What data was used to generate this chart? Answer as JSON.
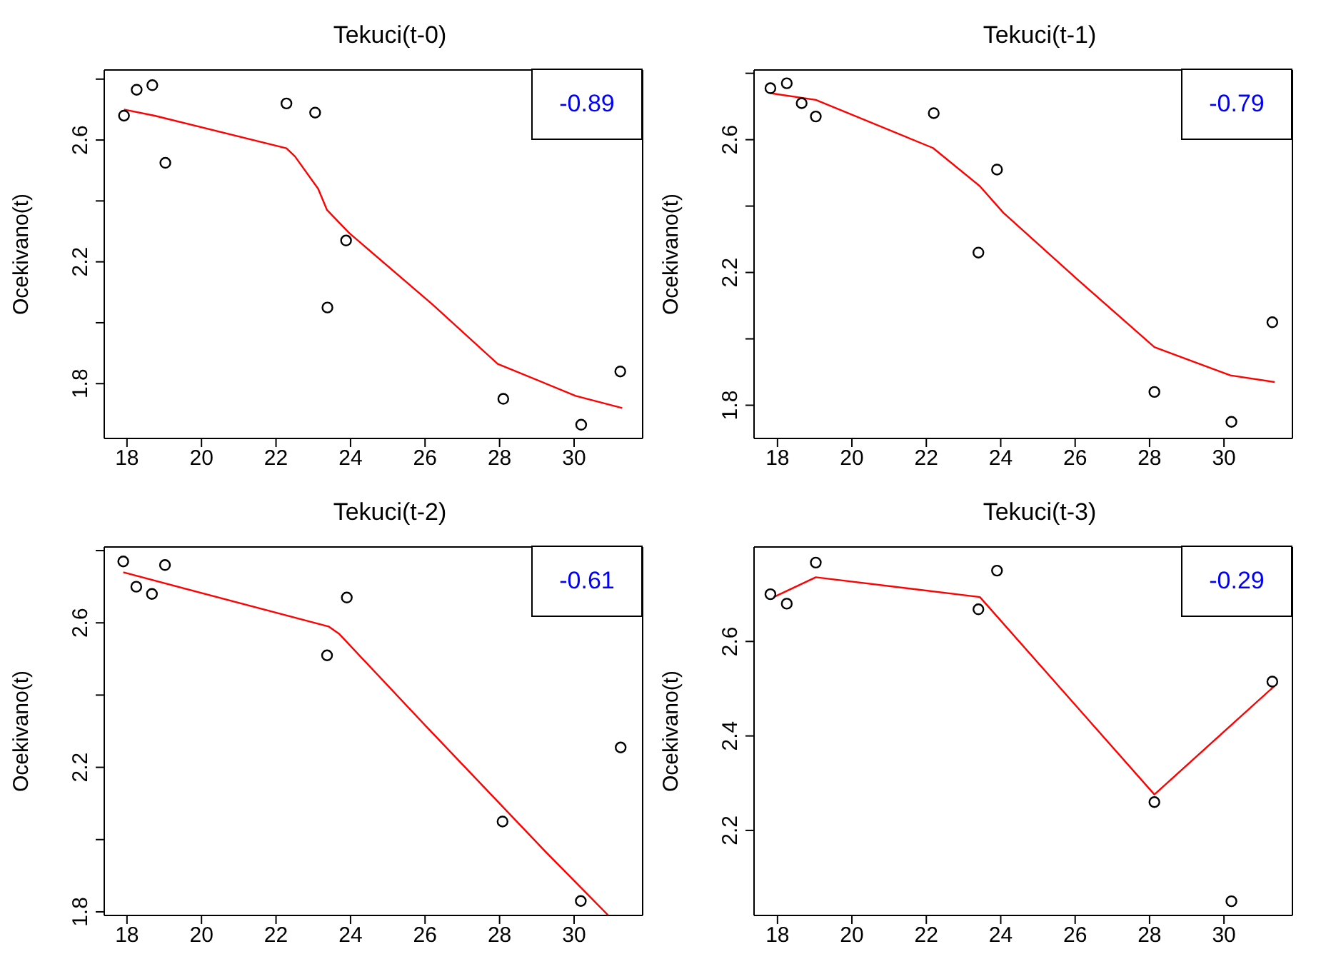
{
  "chart_data": [
    {
      "type": "scatter",
      "title": "Tekuci(t-0)",
      "ylabel": "Ocekivano(t)",
      "annotations": [
        "-0.89"
      ],
      "marker": "circle",
      "grid": false,
      "legend": false,
      "xlim": [
        17.39,
        31.84
      ],
      "xticks": [
        18,
        20,
        22,
        24,
        26,
        28,
        30
      ],
      "ylim": [
        1.62,
        2.83
      ],
      "yticks": [
        1.8,
        {
          "value": 2.0,
          "label": null
        },
        2.2,
        {
          "value": 2.4,
          "label": null
        },
        2.6,
        {
          "value": 2.8,
          "label": null
        }
      ],
      "series": [
        {
          "color": "#000000",
          "x": [
            17.92,
            18.26,
            18.68,
            19.03,
            22.28,
            23.05,
            23.38,
            23.88,
            28.1,
            30.19,
            31.24
          ],
          "values": [
            2.68,
            2.765,
            2.78,
            2.525,
            2.72,
            2.69,
            2.05,
            2.27,
            1.75,
            1.665,
            1.84
          ]
        },
        {
          "type": "line",
          "color": "#ff0000",
          "marker": "none",
          "x": [
            17.92,
            18.74,
            22.28,
            22.51,
            23.13,
            23.37,
            23.97,
            26.2,
            27.95,
            30.04,
            31.29
          ],
          "values": [
            2.7,
            2.68,
            2.573,
            2.546,
            2.44,
            2.37,
            2.294,
            2.06,
            1.865,
            1.76,
            1.72
          ]
        }
      ]
    },
    {
      "type": "scatter",
      "title": "Tekuci(t-1)",
      "ylabel": "Ocekivano(t)",
      "annotations": [
        "-0.79"
      ],
      "marker": "circle",
      "grid": false,
      "legend": false,
      "xlim": [
        17.37,
        31.84
      ],
      "xticks": [
        18,
        20,
        22,
        24,
        26,
        28,
        30
      ],
      "ylim": [
        1.7,
        2.81
      ],
      "yticks": [
        1.8,
        {
          "value": 2.0,
          "label": null
        },
        2.2,
        {
          "value": 2.4,
          "label": null
        },
        2.6,
        {
          "value": 2.8,
          "label": null
        }
      ],
      "series": [
        {
          "color": "#000000",
          "x": [
            17.81,
            18.25,
            18.65,
            19.03,
            22.2,
            23.9,
            23.4,
            28.13,
            30.2,
            31.3
          ],
          "values": [
            2.755,
            2.77,
            2.71,
            2.67,
            2.68,
            2.51,
            2.26,
            1.84,
            1.75,
            2.05
          ]
        },
        {
          "type": "line",
          "color": "#ff0000",
          "marker": "none",
          "x": [
            17.81,
            19.03,
            22.18,
            23.44,
            24.07,
            26.1,
            28.13,
            30.17,
            31.36
          ],
          "values": [
            2.74,
            2.72,
            2.575,
            2.46,
            2.38,
            2.175,
            1.975,
            1.89,
            1.87
          ]
        }
      ]
    },
    {
      "type": "scatter",
      "title": "Tekuci(t-2)",
      "ylabel": "Ocekivano(t)",
      "annotations": [
        "-0.61"
      ],
      "marker": "circle",
      "grid": false,
      "legend": false,
      "xlim": [
        17.39,
        31.84
      ],
      "xticks": [
        18,
        20,
        22,
        24,
        26,
        28,
        30
      ],
      "ylim": [
        1.79,
        2.81
      ],
      "yticks": [
        1.8,
        {
          "value": 2.0,
          "label": null
        },
        2.2,
        {
          "value": 2.4,
          "label": null
        },
        2.6,
        {
          "value": 2.8,
          "label": null
        }
      ],
      "series": [
        {
          "color": "#000000",
          "x": [
            17.9,
            18.25,
            18.67,
            19.02,
            23.37,
            23.9,
            28.08,
            30.18,
            31.25
          ],
          "values": [
            2.77,
            2.7,
            2.68,
            2.76,
            2.51,
            2.67,
            2.05,
            1.83,
            2.255
          ]
        },
        {
          "type": "line",
          "color": "#ff0000",
          "marker": "none",
          "x": [
            17.9,
            23.41,
            23.69,
            26.06,
            29.2,
            30.92
          ],
          "values": [
            2.74,
            2.59,
            2.57,
            2.31,
            1.97,
            1.79
          ]
        }
      ]
    },
    {
      "type": "scatter",
      "title": "Tekuci(t-3)",
      "ylabel": "Ocekivano(t)",
      "annotations": [
        "-0.29"
      ],
      "marker": "circle",
      "grid": false,
      "legend": false,
      "xlim": [
        17.37,
        31.84
      ],
      "xticks": [
        18,
        20,
        22,
        24,
        26,
        28,
        30
      ],
      "ylim": [
        2.02,
        2.8
      ],
      "yticks": [
        2.2,
        2.4,
        2.6
      ],
      "series": [
        {
          "color": "#000000",
          "x": [
            17.81,
            18.25,
            19.03,
            23.4,
            23.9,
            28.13,
            30.2,
            31.3
          ],
          "values": [
            2.7,
            2.68,
            2.767,
            2.668,
            2.75,
            2.26,
            2.05,
            2.515
          ]
        },
        {
          "type": "line",
          "color": "#ff0000",
          "marker": "none",
          "x": [
            17.9,
            19.03,
            23.44,
            28.13,
            31.36
          ],
          "values": [
            2.694,
            2.736,
            2.694,
            2.276,
            2.506
          ]
        }
      ]
    }
  ]
}
